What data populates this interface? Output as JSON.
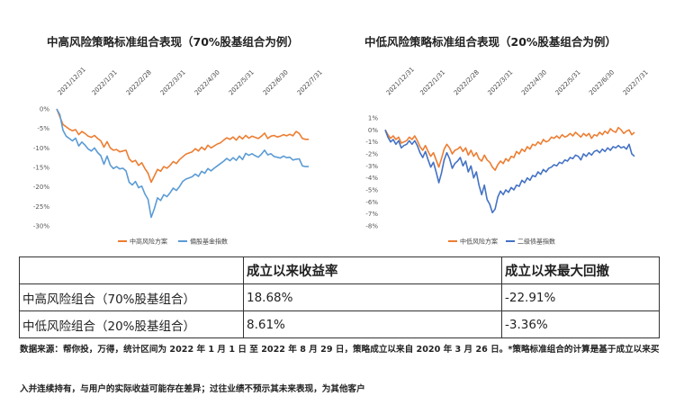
{
  "charts": [
    {
      "type": "line",
      "title": "中高风险策略标准组合表现（70%股基组合为例）",
      "x_ticks": [
        "2021/12/31",
        "2022/1/31",
        "2022/2/28",
        "2022/3/31",
        "2022/4/30",
        "2022/5/31",
        "2022/6/30",
        "2022/7/31"
      ],
      "y_ticks": [
        "0%",
        "-5%",
        "-10%",
        "-15%",
        "-20%",
        "-25%",
        "-30%"
      ],
      "ylim": [
        -30,
        0
      ],
      "x": [
        0,
        3,
        6,
        9,
        12,
        15,
        18,
        21,
        24,
        27,
        30,
        33,
        36,
        39,
        42,
        45,
        48,
        51,
        54,
        57,
        60,
        63,
        66,
        69,
        72,
        75,
        78,
        81,
        84,
        87,
        90,
        93,
        96,
        99,
        102,
        105,
        108,
        111,
        114,
        117,
        120,
        123,
        126,
        129,
        132,
        135,
        138,
        141,
        144,
        147,
        150,
        153,
        156,
        159,
        162,
        165,
        168,
        171,
        174,
        177,
        180,
        183,
        186,
        189,
        192,
        195,
        198,
        201,
        204,
        207,
        210,
        213,
        216,
        219,
        222,
        225,
        228,
        231,
        234,
        237,
        240
      ],
      "series": [
        {
          "name": "中高风险方案",
          "color": "#ED7D31",
          "values": [
            0,
            -2,
            -4,
            -4.6,
            -5.2,
            -5.6,
            -5.3,
            -6.6,
            -5.8,
            -6.3,
            -7,
            -7.3,
            -6.8,
            -7.6,
            -8.2,
            -9.8,
            -8.4,
            -10,
            -10.6,
            -10.4,
            -11,
            -10.8,
            -10.6,
            -12.8,
            -13.6,
            -13.2,
            -14.5,
            -13.8,
            -15.3,
            -16.5,
            -18.8,
            -17.2,
            -15.5,
            -16,
            -14.8,
            -15.2,
            -14.5,
            -13.5,
            -14,
            -13,
            -12.3,
            -11.6,
            -11.3,
            -11,
            -10.2,
            -10.8,
            -9.8,
            -10.5,
            -9.3,
            -10,
            -9.5,
            -9,
            -8.7,
            -8,
            -7.4,
            -7.8,
            -7.2,
            -8,
            -7,
            -7.7,
            -6.8,
            -7.5,
            -7,
            -7.3,
            -7.6,
            -7,
            -6.2,
            -7.6,
            -7,
            -6.8,
            -7.2,
            -7,
            -6.6,
            -6.9,
            -6.5,
            -6.9,
            -5.8,
            -6.3,
            -7.6,
            -7.8,
            -7.8
          ]
        },
        {
          "name": "偏股基金指数",
          "color": "#5B9BD5",
          "values": [
            0,
            -1.5,
            -5.5,
            -7,
            -7.6,
            -8.2,
            -7.5,
            -9.5,
            -8.5,
            -9.3,
            -10.3,
            -10.8,
            -10,
            -11.2,
            -12,
            -14.2,
            -12.1,
            -14.4,
            -15.3,
            -14.8,
            -15.4,
            -15.2,
            -15.9,
            -18.8,
            -19.5,
            -18.6,
            -20.2,
            -19.8,
            -21.8,
            -23.2,
            -27.8,
            -25.6,
            -22.8,
            -23.5,
            -22,
            -22.5,
            -21.5,
            -20.3,
            -20.9,
            -19.9,
            -18.6,
            -18,
            -17.7,
            -17.4,
            -16.7,
            -17.3,
            -16,
            -16.5,
            -15.3,
            -15.9,
            -15.2,
            -14.6,
            -14,
            -13.4,
            -12.7,
            -13.3,
            -12.5,
            -13.2,
            -12.1,
            -13,
            -11.4,
            -11.9,
            -11.5,
            -12,
            -12.4,
            -11.6,
            -10.6,
            -11.8,
            -11.5,
            -12.2,
            -12.4,
            -12.6,
            -12.1,
            -12.5,
            -12.4,
            -13.1,
            -12.9,
            -12.8,
            -14.6,
            -14.8,
            -14.8
          ]
        }
      ]
    },
    {
      "type": "line",
      "title": "中低风险策略标准组合表现（20%股基组合为例）",
      "x_ticks": [
        "2021/12/31",
        "2022/1/31",
        "2022/2/28",
        "2022/3/31",
        "2022/4/30",
        "2022/5/31",
        "2022/6/30",
        "2022/7/31"
      ],
      "y_ticks": [
        "1%",
        "0%",
        "-1%",
        "-2%",
        "-3%",
        "-4%",
        "-5%",
        "-6%",
        "-7%",
        "-8%"
      ],
      "ylim": [
        -8,
        1
      ],
      "x": [
        0,
        3,
        6,
        9,
        12,
        15,
        18,
        21,
        24,
        27,
        30,
        33,
        36,
        39,
        42,
        45,
        48,
        51,
        54,
        57,
        60,
        63,
        66,
        69,
        72,
        75,
        78,
        81,
        84,
        87,
        90,
        93,
        96,
        99,
        102,
        105,
        108,
        111,
        114,
        117,
        120,
        123,
        126,
        129,
        132,
        135,
        138,
        141,
        144,
        147,
        150,
        153,
        156,
        159,
        162,
        165,
        168,
        171,
        174,
        177,
        180,
        183,
        186,
        189,
        192,
        195,
        198,
        201,
        204,
        207,
        210,
        213,
        216,
        219,
        222,
        225,
        228,
        231,
        234,
        237,
        240,
        243,
        246,
        249,
        252,
        255,
        258,
        261,
        264,
        267,
        270,
        273,
        276,
        279
      ],
      "series": [
        {
          "name": "中低风险方案",
          "color": "#ED7D31",
          "values": [
            0,
            -0.4,
            -0.7,
            -0.5,
            -0.8,
            -0.6,
            -1.1,
            -1,
            -0.9,
            -0.6,
            -0.8,
            -0.5,
            -0.9,
            -1.4,
            -1.7,
            -1.3,
            -1.8,
            -2.2,
            -1.9,
            -2.5,
            -3.1,
            -2.4,
            -1.6,
            -1.2,
            -1.5,
            -2,
            -1.7,
            -1.6,
            -1.4,
            -1.8,
            -1.5,
            -2.1,
            -1.7,
            -2.2,
            -1.9,
            -2.4,
            -2.6,
            -2.1,
            -2.5,
            -2.7,
            -3.1,
            -3.36,
            -2.9,
            -2.6,
            -2.8,
            -2.4,
            -2.6,
            -2.2,
            -2.3,
            -1.8,
            -2,
            -1.6,
            -1.8,
            -1.4,
            -1.6,
            -1.2,
            -1.3,
            -1,
            -1.2,
            -0.8,
            -1,
            -0.9,
            -0.6,
            -0.7,
            -0.5,
            -0.7,
            -0.4,
            -0.6,
            -0.5,
            -0.3,
            -0.5,
            -0.2,
            -0.4,
            -0.6,
            -0.3,
            -0.5,
            -0.3,
            -0.7,
            -0.4,
            -0.5,
            -0.2,
            -0.4,
            -0.1,
            -0.3,
            0.1,
            -0.1,
            -0.2,
            0.2,
            0,
            -0.3,
            -0.1,
            0,
            -0.4,
            -0.2
          ]
        },
        {
          "name": "二级债基指数",
          "color": "#4472C4",
          "values": [
            0,
            -0.6,
            -1,
            -0.8,
            -1.2,
            -0.9,
            -1.5,
            -1.3,
            -1.2,
            -0.9,
            -1.2,
            -0.9,
            -1.3,
            -1.9,
            -2.3,
            -1.8,
            -2.5,
            -3.1,
            -2.7,
            -3.5,
            -4.4,
            -3.6,
            -2.5,
            -1.9,
            -2.4,
            -3.2,
            -2.8,
            -2.6,
            -2.3,
            -3,
            -2.6,
            -3.5,
            -3,
            -4,
            -3.5,
            -4.6,
            -5.4,
            -4.6,
            -5.8,
            -6.2,
            -6.9,
            -6.6,
            -5.6,
            -5.1,
            -5.4,
            -5,
            -5.2,
            -4.8,
            -5,
            -4.6,
            -4.7,
            -4.2,
            -4.4,
            -4,
            -4.2,
            -3.8,
            -3.9,
            -3.5,
            -3.7,
            -3.3,
            -3.5,
            -3.2,
            -3.1,
            -2.9,
            -3,
            -2.7,
            -2.8,
            -2.5,
            -2.6,
            -2.3,
            -2.4,
            -2.1,
            -2.2,
            -2.5,
            -2,
            -2.2,
            -1.9,
            -2.1,
            -1.8,
            -1.7,
            -1.9,
            -1.6,
            -1.8,
            -1.5,
            -1.7,
            -1.4,
            -1.5,
            -1.3,
            -1.5,
            -1.4,
            -1.6,
            -1.2,
            -2,
            -2.2
          ]
        }
      ]
    }
  ],
  "table": {
    "header": [
      "",
      "成立以来收益率",
      "成立以来最大回撤"
    ],
    "rows": [
      [
        "中高风险组合（70%股基组合）",
        "18.68%",
        "-22.91%"
      ],
      [
        "中低风险组合（20%股基组合）",
        "8.61%",
        "-3.36%"
      ]
    ]
  },
  "notes": {
    "line1": "数据来源：帮你投，万得，统计区间为 2022 年 1 月 1 日 至 2022 年 8 月 29 日，策略成立以来自 2020 年 3 月 26 日。*策略标准组合的计算是基于成立以来买",
    "line2": "入并连续持有，与用户的实际收益可能存在差异；过往业绩不预示其未来表现，为其他客户"
  }
}
